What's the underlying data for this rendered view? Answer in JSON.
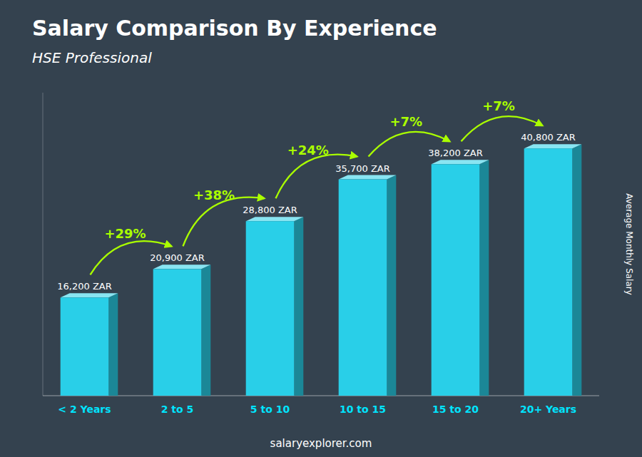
{
  "chart_data": {
    "type": "bar",
    "title": "Salary Comparison By Experience",
    "subtitle": "HSE Professional",
    "ylabel": "Average Monthly Salary",
    "footer": "salaryexplorer.com",
    "categories": [
      "< 2 Years",
      "2 to 5",
      "5 to 10",
      "10 to 15",
      "15 to 20",
      "20+ Years"
    ],
    "values": [
      16200,
      20900,
      28800,
      35700,
      38200,
      40800
    ],
    "value_labels": [
      "16,200 ZAR",
      "20,900 ZAR",
      "28,800 ZAR",
      "35,700 ZAR",
      "38,200 ZAR",
      "40,800 ZAR"
    ],
    "annotations": [
      "+29%",
      "+38%",
      "+24%",
      "+7%",
      "+7%"
    ],
    "color": "#29cfe8",
    "ylim": [
      0,
      50000
    ],
    "data_labels": true,
    "tick_labels": "x",
    "grid": false
  }
}
